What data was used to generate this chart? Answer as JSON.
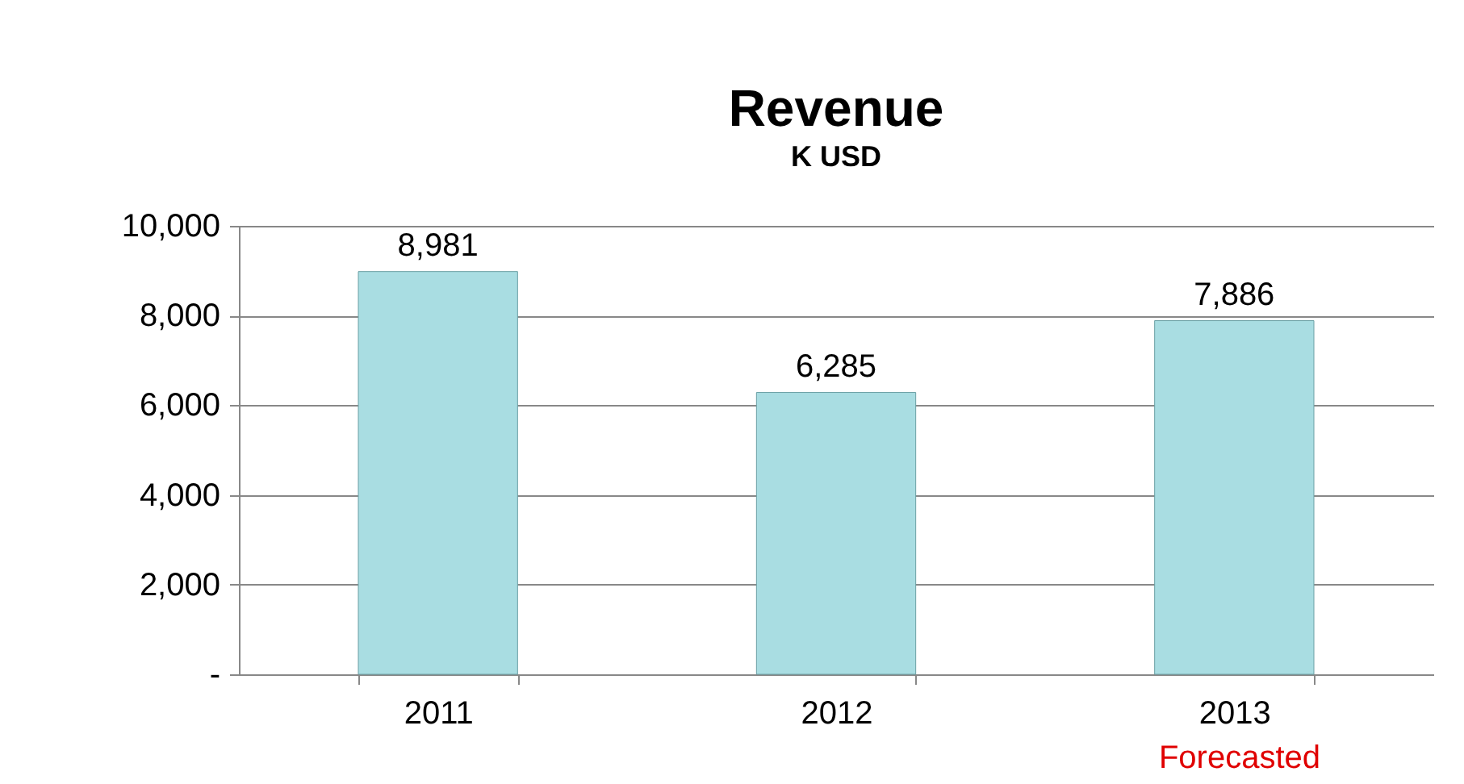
{
  "chart_data": {
    "type": "bar",
    "title": "Revenue",
    "subtitle": "K USD",
    "categories": [
      "2011",
      "2012",
      "2013"
    ],
    "values": [
      8981,
      6285,
      7886
    ],
    "value_labels": [
      "8,981",
      "6,285",
      "7,886"
    ],
    "color": "#a9dde2",
    "ylim": [
      0,
      10000
    ],
    "yticks": [
      {
        "value": 0,
        "label": "-"
      },
      {
        "value": 2000,
        "label": "2,000"
      },
      {
        "value": 4000,
        "label": "4,000"
      },
      {
        "value": 6000,
        "label": "6,000"
      },
      {
        "value": 8000,
        "label": "8,000"
      },
      {
        "value": 10000,
        "label": "10,000"
      }
    ],
    "grid": "y",
    "annotations": [
      "Forecasted"
    ]
  }
}
